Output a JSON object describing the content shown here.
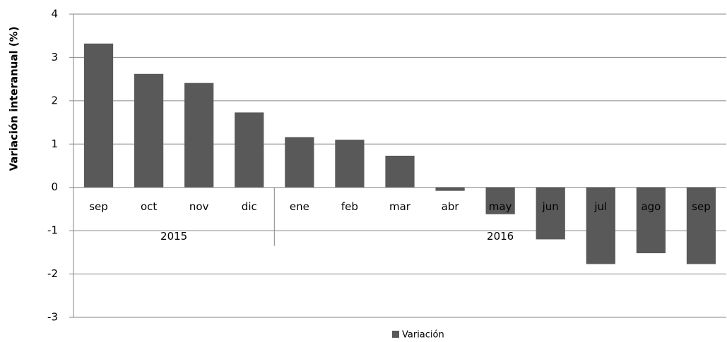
{
  "chart_data": {
    "type": "bar",
    "y_label": "Variación interanual (%)",
    "categories": [
      "sep",
      "oct",
      "nov",
      "dic",
      "ene",
      "feb",
      "mar",
      "abr",
      "may",
      "jun",
      "jul",
      "ago",
      "sep"
    ],
    "category_groups": [
      {
        "label": "2015",
        "categories": [
          "sep",
          "oct",
          "nov",
          "dic"
        ]
      },
      {
        "label": "2016",
        "categories": [
          "ene",
          "feb",
          "mar",
          "abr",
          "may",
          "jun",
          "jul",
          "ago",
          "sep"
        ]
      }
    ],
    "series": [
      {
        "name": "Variación",
        "color": "#595959",
        "values": [
          3.32,
          2.62,
          2.41,
          1.73,
          1.16,
          1.1,
          0.73,
          -0.08,
          -0.62,
          -1.2,
          -1.77,
          -1.52,
          -1.77
        ]
      }
    ],
    "ylim": [
      -3,
      4
    ],
    "yticks": [
      -3,
      -2,
      -1,
      0,
      1,
      2,
      3,
      4
    ],
    "grid": true,
    "legend": "bottom"
  }
}
